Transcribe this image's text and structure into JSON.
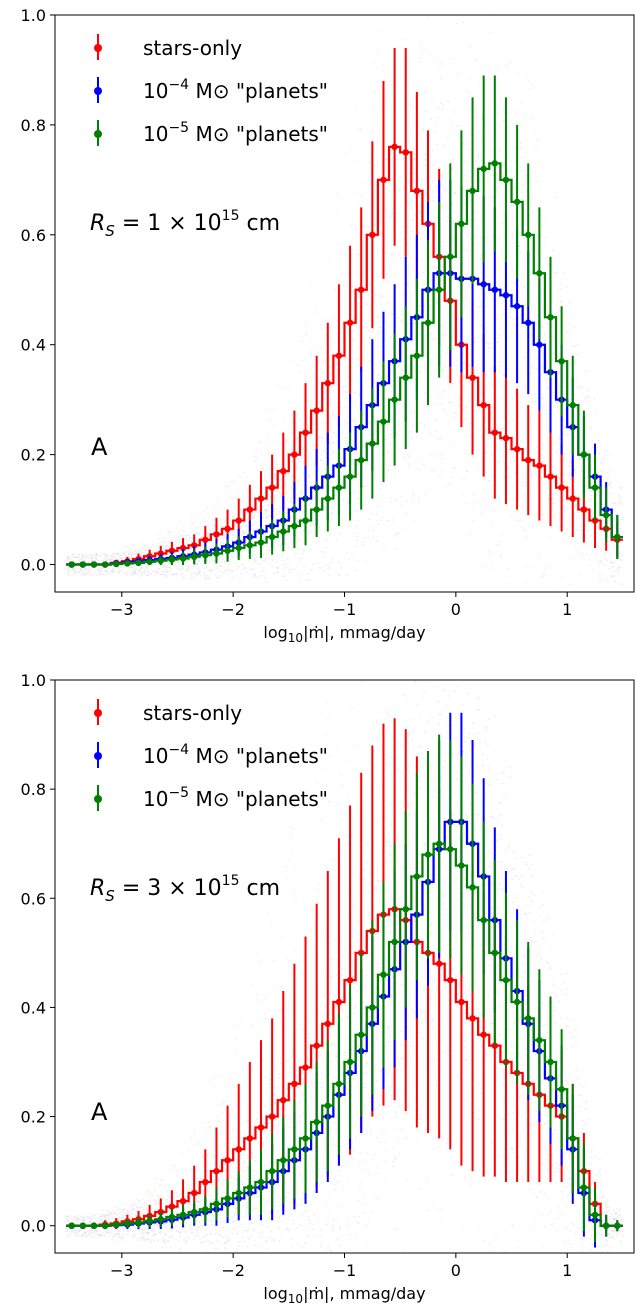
{
  "chart_data": [
    {
      "type": "line",
      "panel": "top",
      "annotation_main": "R_S = 1 × 10^15 cm",
      "panel_letter": "A",
      "xlabel": "log10|ṁ|, mmag/day",
      "ylabel": "",
      "xlim": [
        -3.6,
        1.6
      ],
      "ylim": [
        -0.05,
        1.0
      ],
      "xticks": [
        -3,
        -2,
        -1,
        0,
        1
      ],
      "xtick_labels": [
        "−3",
        "−2",
        "−1",
        "0",
        "1"
      ],
      "yticks": [
        0.0,
        0.2,
        0.4,
        0.6,
        0.8,
        1.0
      ],
      "ytick_labels": [
        "0.0",
        "0.2",
        "0.4",
        "0.6",
        "0.8",
        "1.0"
      ],
      "legend_position": "top-left",
      "x": [
        -3.45,
        -3.35,
        -3.25,
        -3.15,
        -3.05,
        -2.95,
        -2.85,
        -2.75,
        -2.65,
        -2.55,
        -2.45,
        -2.35,
        -2.25,
        -2.15,
        -2.05,
        -1.95,
        -1.85,
        -1.75,
        -1.65,
        -1.55,
        -1.45,
        -1.35,
        -1.25,
        -1.15,
        -1.05,
        -0.95,
        -0.85,
        -0.75,
        -0.65,
        -0.55,
        -0.45,
        -0.35,
        -0.25,
        -0.15,
        -0.05,
        0.05,
        0.15,
        0.25,
        0.35,
        0.45,
        0.55,
        0.65,
        0.75,
        0.85,
        0.95,
        1.05,
        1.15,
        1.25,
        1.35,
        1.45
      ],
      "series": [
        {
          "name": "stars-only",
          "color": "#ff0000",
          "values": [
            0.0,
            0.0,
            0.0,
            0.0,
            0.003,
            0.006,
            0.01,
            0.015,
            0.02,
            0.025,
            0.03,
            0.035,
            0.045,
            0.055,
            0.065,
            0.08,
            0.1,
            0.12,
            0.14,
            0.17,
            0.2,
            0.24,
            0.28,
            0.33,
            0.38,
            0.44,
            0.5,
            0.6,
            0.7,
            0.76,
            0.75,
            0.68,
            0.62,
            0.56,
            0.48,
            0.4,
            0.34,
            0.29,
            0.24,
            0.23,
            0.21,
            0.19,
            0.18,
            0.16,
            0.14,
            0.12,
            0.1,
            0.08,
            0.065,
            0.045
          ],
          "err": [
            0.005,
            0.005,
            0.005,
            0.005,
            0.005,
            0.008,
            0.01,
            0.012,
            0.014,
            0.016,
            0.018,
            0.02,
            0.025,
            0.03,
            0.035,
            0.04,
            0.045,
            0.05,
            0.06,
            0.07,
            0.08,
            0.09,
            0.1,
            0.11,
            0.13,
            0.14,
            0.15,
            0.17,
            0.18,
            0.18,
            0.19,
            0.18,
            0.17,
            0.16,
            0.15,
            0.15,
            0.14,
            0.13,
            0.12,
            0.12,
            0.11,
            0.1,
            0.1,
            0.09,
            0.08,
            0.07,
            0.06,
            0.05,
            0.04,
            0.03
          ]
        },
        {
          "name": "10^-4 M⊙ \"planets\"",
          "color": "#0000ff",
          "values": [
            0.0,
            0.0,
            0.0,
            0.0,
            0.002,
            0.004,
            0.006,
            0.008,
            0.01,
            0.012,
            0.015,
            0.018,
            0.022,
            0.027,
            0.033,
            0.04,
            0.05,
            0.06,
            0.07,
            0.08,
            0.1,
            0.12,
            0.14,
            0.16,
            0.18,
            0.21,
            0.25,
            0.29,
            0.33,
            0.37,
            0.41,
            0.45,
            0.5,
            0.53,
            0.53,
            0.52,
            0.52,
            0.51,
            0.5,
            0.49,
            0.47,
            0.44,
            0.4,
            0.35,
            0.3,
            0.25,
            0.2,
            0.16,
            0.1,
            0.05
          ],
          "err": [
            0.004,
            0.004,
            0.004,
            0.004,
            0.004,
            0.005,
            0.006,
            0.008,
            0.01,
            0.012,
            0.014,
            0.016,
            0.018,
            0.02,
            0.022,
            0.025,
            0.03,
            0.035,
            0.04,
            0.045,
            0.05,
            0.06,
            0.07,
            0.08,
            0.09,
            0.1,
            0.11,
            0.12,
            0.13,
            0.14,
            0.15,
            0.15,
            0.16,
            0.17,
            0.17,
            0.17,
            0.16,
            0.16,
            0.15,
            0.15,
            0.14,
            0.13,
            0.12,
            0.11,
            0.1,
            0.09,
            0.07,
            0.06,
            0.05,
            0.04
          ]
        },
        {
          "name": "10^-5 M⊙ \"planets\"",
          "color": "#008000",
          "values": [
            0.0,
            0.0,
            0.0,
            0.0,
            0.001,
            0.002,
            0.003,
            0.005,
            0.007,
            0.009,
            0.011,
            0.014,
            0.017,
            0.02,
            0.025,
            0.03,
            0.035,
            0.04,
            0.05,
            0.06,
            0.07,
            0.08,
            0.1,
            0.12,
            0.14,
            0.16,
            0.19,
            0.22,
            0.26,
            0.3,
            0.34,
            0.38,
            0.44,
            0.5,
            0.56,
            0.62,
            0.68,
            0.72,
            0.73,
            0.7,
            0.66,
            0.6,
            0.53,
            0.45,
            0.37,
            0.29,
            0.2,
            0.14,
            0.09,
            0.05
          ],
          "err": [
            0.004,
            0.004,
            0.004,
            0.004,
            0.004,
            0.004,
            0.005,
            0.006,
            0.008,
            0.01,
            0.012,
            0.014,
            0.016,
            0.018,
            0.02,
            0.022,
            0.025,
            0.028,
            0.032,
            0.036,
            0.04,
            0.045,
            0.05,
            0.06,
            0.07,
            0.08,
            0.09,
            0.1,
            0.11,
            0.12,
            0.13,
            0.14,
            0.15,
            0.16,
            0.17,
            0.17,
            0.17,
            0.17,
            0.16,
            0.15,
            0.14,
            0.13,
            0.12,
            0.11,
            0.1,
            0.09,
            0.08,
            0.06,
            0.05,
            0.04
          ]
        }
      ]
    },
    {
      "type": "line",
      "panel": "bottom",
      "annotation_main": "R_S = 3 × 10^15 cm",
      "panel_letter": "A",
      "xlabel": "log10|ṁ|, mmag/day",
      "ylabel": "",
      "xlim": [
        -3.6,
        1.6
      ],
      "ylim": [
        -0.05,
        1.0
      ],
      "xticks": [
        -3,
        -2,
        -1,
        0,
        1
      ],
      "xtick_labels": [
        "−3",
        "−2",
        "−1",
        "0",
        "1"
      ],
      "yticks": [
        0.0,
        0.2,
        0.4,
        0.6,
        0.8,
        1.0
      ],
      "ytick_labels": [
        "0.0",
        "0.2",
        "0.4",
        "0.6",
        "0.8",
        "1.0"
      ],
      "legend_position": "top-left",
      "x": [
        -3.45,
        -3.35,
        -3.25,
        -3.15,
        -3.05,
        -2.95,
        -2.85,
        -2.75,
        -2.65,
        -2.55,
        -2.45,
        -2.35,
        -2.25,
        -2.15,
        -2.05,
        -1.95,
        -1.85,
        -1.75,
        -1.65,
        -1.55,
        -1.45,
        -1.35,
        -1.25,
        -1.15,
        -1.05,
        -0.95,
        -0.85,
        -0.75,
        -0.65,
        -0.55,
        -0.45,
        -0.35,
        -0.25,
        -0.15,
        -0.05,
        0.05,
        0.15,
        0.25,
        0.35,
        0.45,
        0.55,
        0.65,
        0.75,
        0.85,
        0.95,
        1.05,
        1.15,
        1.25,
        1.35,
        1.45
      ],
      "series": [
        {
          "name": "stars-only",
          "color": "#ff0000",
          "values": [
            0.0,
            0.0,
            0.0,
            0.002,
            0.004,
            0.008,
            0.012,
            0.018,
            0.025,
            0.035,
            0.045,
            0.06,
            0.08,
            0.1,
            0.12,
            0.14,
            0.16,
            0.18,
            0.2,
            0.23,
            0.26,
            0.29,
            0.33,
            0.37,
            0.41,
            0.45,
            0.5,
            0.54,
            0.57,
            0.58,
            0.56,
            0.52,
            0.5,
            0.48,
            0.45,
            0.41,
            0.38,
            0.35,
            0.33,
            0.3,
            0.28,
            0.26,
            0.24,
            0.22,
            0.2,
            0.16,
            0.1,
            0.04,
            0.0,
            0.0
          ],
          "err": [
            0.005,
            0.005,
            0.006,
            0.008,
            0.01,
            0.012,
            0.015,
            0.02,
            0.025,
            0.03,
            0.04,
            0.05,
            0.06,
            0.08,
            0.1,
            0.12,
            0.14,
            0.16,
            0.18,
            0.2,
            0.22,
            0.24,
            0.26,
            0.28,
            0.3,
            0.32,
            0.33,
            0.34,
            0.35,
            0.35,
            0.35,
            0.34,
            0.33,
            0.32,
            0.31,
            0.3,
            0.28,
            0.26,
            0.24,
            0.22,
            0.2,
            0.18,
            0.16,
            0.14,
            0.12,
            0.1,
            0.07,
            0.04,
            0.01,
            0.005
          ]
        },
        {
          "name": "10^-4 M⊙ \"planets\"",
          "color": "#0000ff",
          "values": [
            0.0,
            0.0,
            0.0,
            0.0,
            0.001,
            0.002,
            0.004,
            0.006,
            0.008,
            0.011,
            0.015,
            0.02,
            0.025,
            0.03,
            0.04,
            0.05,
            0.06,
            0.07,
            0.08,
            0.1,
            0.12,
            0.14,
            0.17,
            0.2,
            0.24,
            0.28,
            0.32,
            0.37,
            0.42,
            0.47,
            0.52,
            0.57,
            0.63,
            0.69,
            0.74,
            0.74,
            0.7,
            0.64,
            0.56,
            0.49,
            0.43,
            0.37,
            0.32,
            0.27,
            0.22,
            0.14,
            0.06,
            0.01,
            0.0,
            0.0
          ],
          "err": [
            0.004,
            0.004,
            0.004,
            0.005,
            0.006,
            0.008,
            0.01,
            0.012,
            0.014,
            0.016,
            0.018,
            0.02,
            0.025,
            0.03,
            0.035,
            0.04,
            0.05,
            0.06,
            0.07,
            0.08,
            0.09,
            0.1,
            0.11,
            0.12,
            0.13,
            0.14,
            0.15,
            0.16,
            0.17,
            0.18,
            0.18,
            0.19,
            0.19,
            0.2,
            0.2,
            0.2,
            0.19,
            0.18,
            0.17,
            0.16,
            0.15,
            0.14,
            0.13,
            0.12,
            0.11,
            0.1,
            0.08,
            0.05,
            0.02,
            0.01
          ]
        },
        {
          "name": "10^-5 M⊙ \"planets\"",
          "color": "#008000",
          "values": [
            0.0,
            0.0,
            0.0,
            0.0,
            0.002,
            0.004,
            0.006,
            0.009,
            0.012,
            0.016,
            0.02,
            0.025,
            0.03,
            0.04,
            0.05,
            0.06,
            0.07,
            0.08,
            0.1,
            0.12,
            0.14,
            0.16,
            0.19,
            0.22,
            0.26,
            0.3,
            0.35,
            0.4,
            0.46,
            0.52,
            0.58,
            0.64,
            0.68,
            0.7,
            0.69,
            0.66,
            0.62,
            0.56,
            0.5,
            0.45,
            0.41,
            0.38,
            0.34,
            0.3,
            0.25,
            0.16,
            0.07,
            0.02,
            0.0,
            0.0
          ],
          "err": [
            0.004,
            0.004,
            0.004,
            0.005,
            0.006,
            0.008,
            0.01,
            0.012,
            0.014,
            0.016,
            0.018,
            0.02,
            0.025,
            0.03,
            0.035,
            0.04,
            0.05,
            0.06,
            0.07,
            0.08,
            0.09,
            0.1,
            0.11,
            0.12,
            0.13,
            0.14,
            0.15,
            0.16,
            0.17,
            0.18,
            0.18,
            0.19,
            0.19,
            0.2,
            0.2,
            0.2,
            0.19,
            0.18,
            0.17,
            0.16,
            0.15,
            0.14,
            0.13,
            0.12,
            0.11,
            0.1,
            0.08,
            0.05,
            0.02,
            0.01
          ]
        }
      ]
    }
  ]
}
